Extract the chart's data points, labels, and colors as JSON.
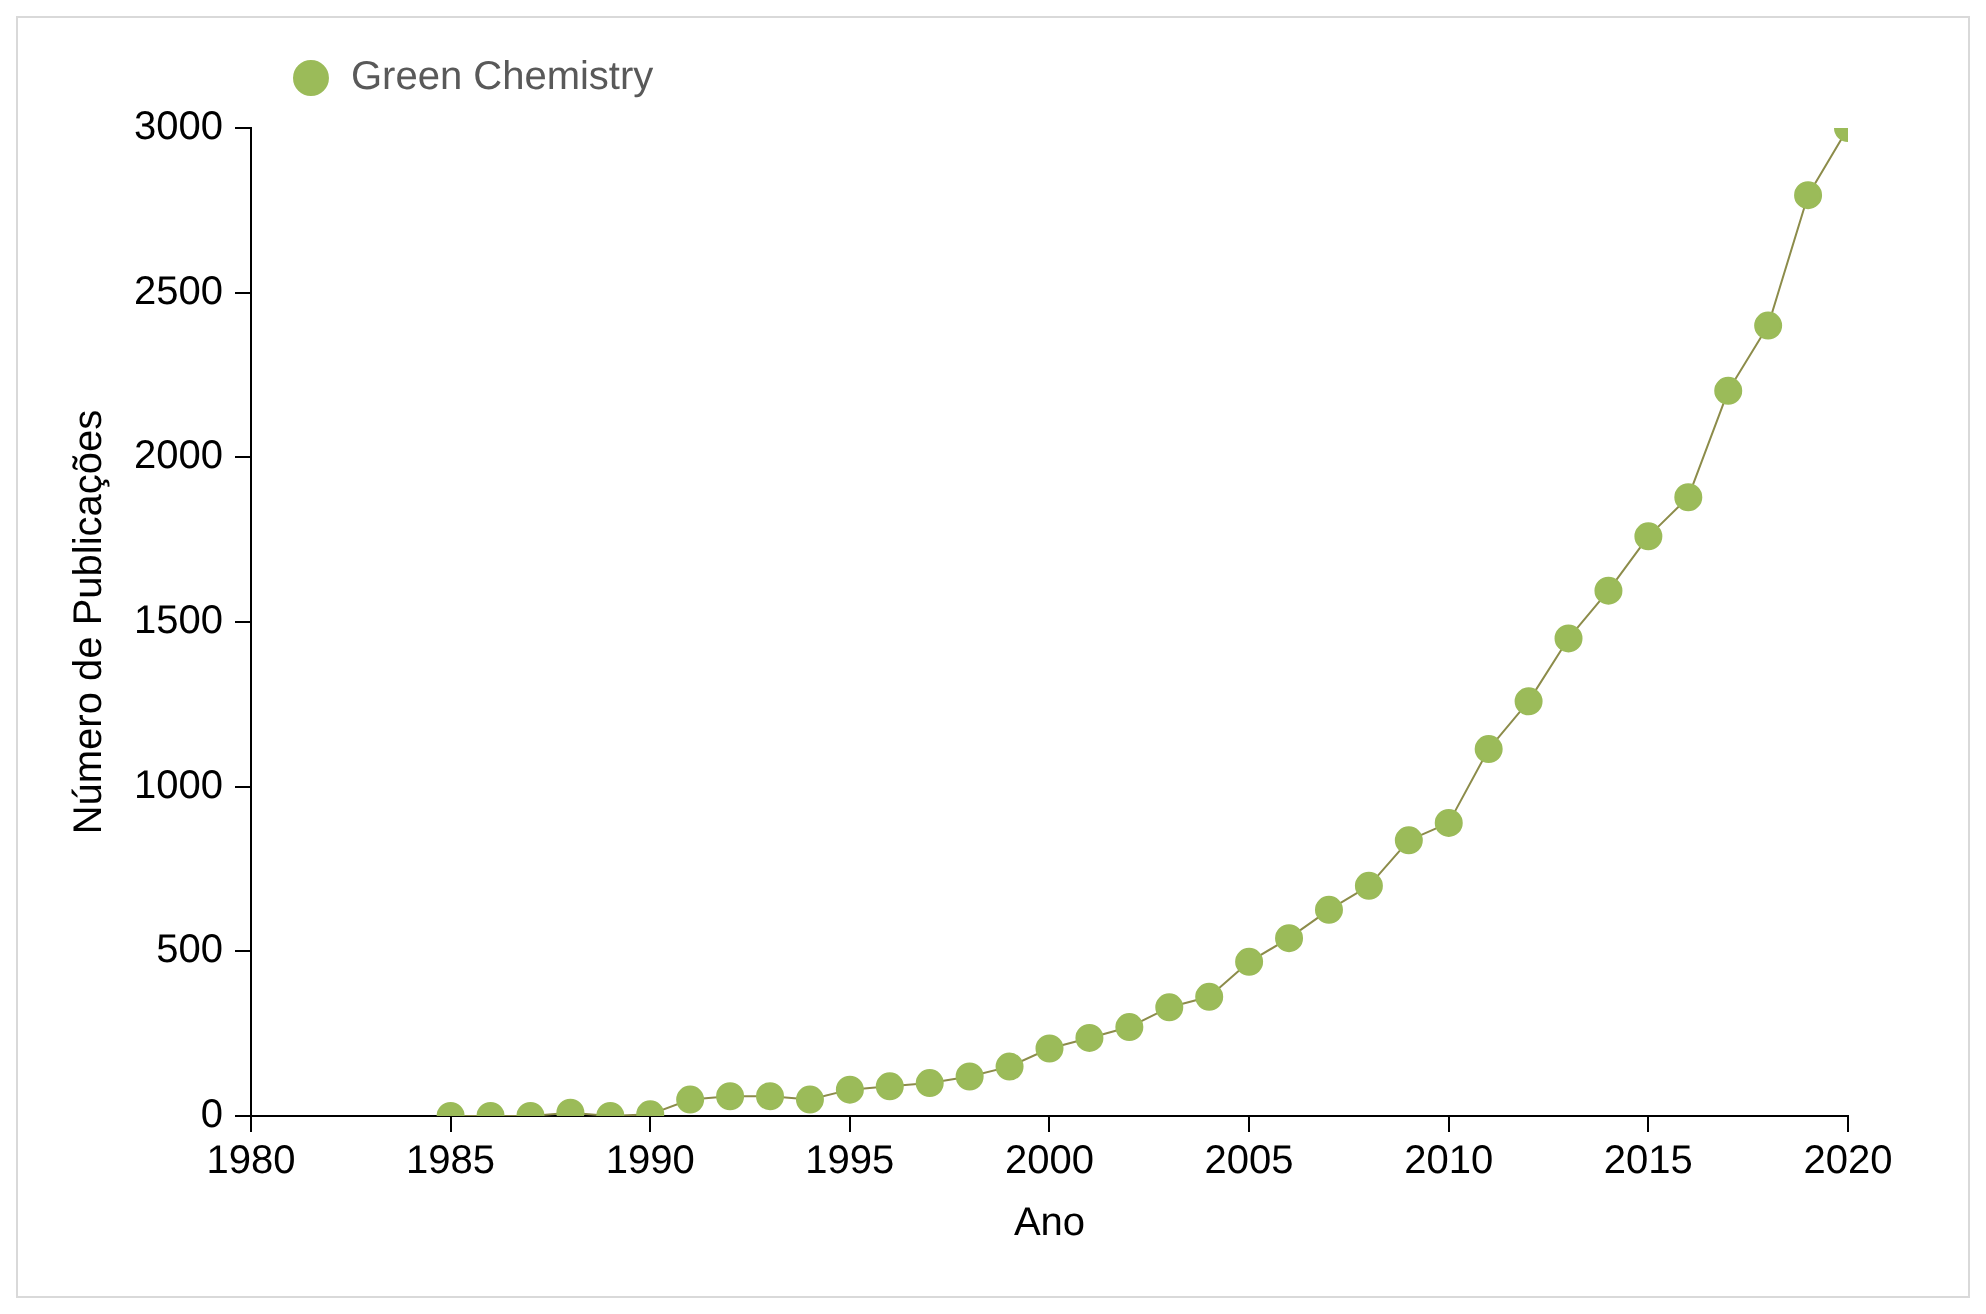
{
  "chart_data": {
    "type": "line",
    "xlabel": "Ano",
    "ylabel": "Número de Publicações",
    "x": [
      1985,
      1986,
      1987,
      1988,
      1989,
      1990,
      1991,
      1992,
      1993,
      1994,
      1995,
      1996,
      1997,
      1998,
      1999,
      2000,
      2001,
      2002,
      2003,
      2004,
      2005,
      2006,
      2007,
      2008,
      2009,
      2010,
      2011,
      2012,
      2013,
      2014,
      2015,
      2016,
      2017,
      2018,
      2019,
      2020
    ],
    "series": [
      {
        "name": "Green Chemistry",
        "color": "#9bbb59",
        "values": [
          0,
          0,
          0,
          10,
          0,
          5,
          50,
          60,
          60,
          50,
          80,
          90,
          100,
          120,
          150,
          205,
          237,
          270,
          330,
          362,
          468,
          540,
          626,
          699,
          837,
          890,
          1114,
          1259,
          1450,
          1595,
          1760,
          1879,
          2202,
          2400,
          2796,
          3000
        ]
      }
    ],
    "xlim": [
      1980,
      2020
    ],
    "xticks": [
      1980,
      1985,
      1990,
      1995,
      2000,
      2005,
      2010,
      2015,
      2020
    ],
    "ylim": [
      0,
      3000
    ],
    "yticks": [
      0,
      500,
      1000,
      1500,
      2000,
      2500,
      3000
    ],
    "grid": false,
    "legend": "top left",
    "marker": "circle",
    "line_style": "solid"
  }
}
